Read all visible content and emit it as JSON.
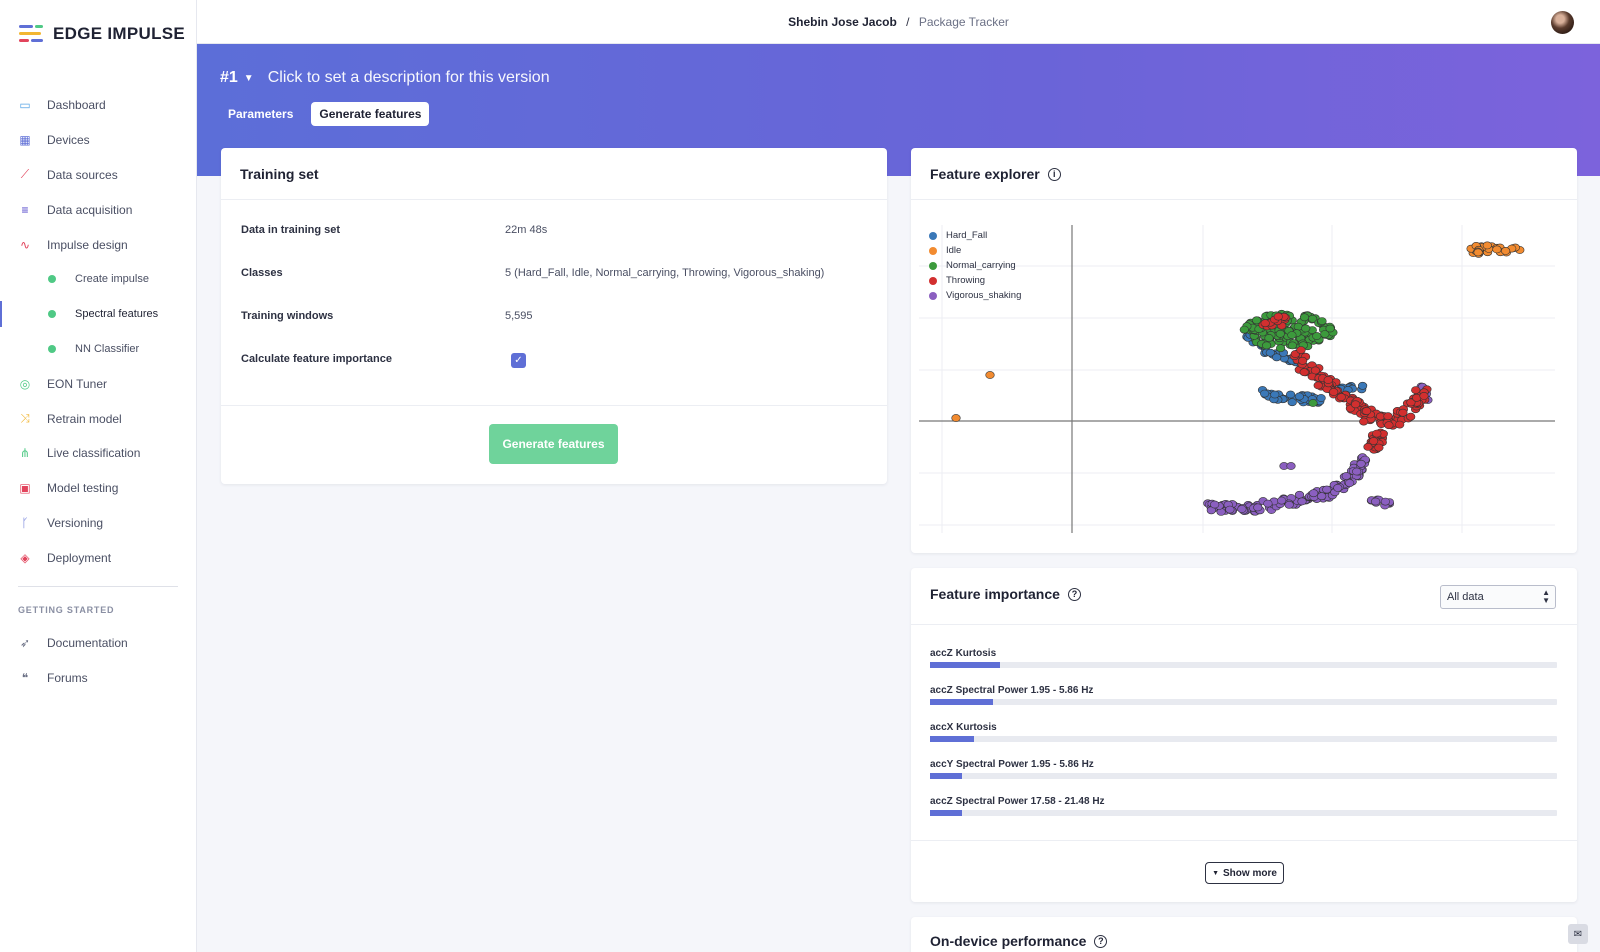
{
  "app": {
    "brand": "EDGE IMPULSE"
  },
  "sidebar": {
    "items": [
      {
        "label": "Dashboard",
        "icon": "monitor-icon",
        "color": "#5aa6e6"
      },
      {
        "label": "Devices",
        "icon": "chip-icon",
        "color": "#5f6fd6"
      },
      {
        "label": "Data sources",
        "icon": "wand-icon",
        "color": "#e2445c"
      },
      {
        "label": "Data acquisition",
        "icon": "database-icon",
        "color": "#4b3fc9"
      },
      {
        "label": "Impulse design",
        "icon": "pulse-icon",
        "color": "#e2445c"
      }
    ],
    "sub_items": [
      {
        "label": "Create impulse"
      },
      {
        "label": "Spectral features"
      },
      {
        "label": "NN Classifier"
      }
    ],
    "items_after": [
      {
        "label": "EON Tuner",
        "icon": "compass-icon",
        "color": "#4fc985"
      },
      {
        "label": "Retrain model",
        "icon": "shuffle-icon",
        "color": "#f2b632"
      },
      {
        "label": "Live classification",
        "icon": "network-icon",
        "color": "#4fc985"
      },
      {
        "label": "Model testing",
        "icon": "clipboard-check-icon",
        "color": "#e2445c"
      },
      {
        "label": "Versioning",
        "icon": "branch-icon",
        "color": "#5f6fd6"
      },
      {
        "label": "Deployment",
        "icon": "box-icon",
        "color": "#e2445c"
      }
    ],
    "section_label": "GETTING STARTED",
    "getting_started": [
      {
        "label": "Documentation",
        "icon": "rocket-icon"
      },
      {
        "label": "Forums",
        "icon": "chat-bubbles-icon"
      }
    ]
  },
  "topbar": {
    "user": "Shebin Jose Jacob",
    "separator": "/",
    "project": "Package Tracker"
  },
  "header": {
    "version": "#1",
    "description": "Click to set a description for this version",
    "tabs": [
      "Parameters",
      "Generate features"
    ],
    "active_tab": "Generate features"
  },
  "training_set": {
    "title": "Training set",
    "rows": [
      {
        "key": "Data in training set",
        "value": "22m 48s"
      },
      {
        "key": "Classes",
        "value": "5 (Hard_Fall, Idle, Normal_carrying, Throwing, Vigorous_shaking)"
      },
      {
        "key": "Training windows",
        "value": "5,595"
      },
      {
        "key": "Calculate feature importance",
        "value": ""
      }
    ],
    "calculate_checked": true,
    "button_label": "Generate features"
  },
  "feature_explorer": {
    "title": "Feature explorer",
    "legend": [
      {
        "name": "Hard_Fall",
        "color": "#3a78b8"
      },
      {
        "name": "Idle",
        "color": "#f28b30"
      },
      {
        "name": "Normal_carrying",
        "color": "#3c9a3c"
      },
      {
        "name": "Throwing",
        "color": "#d22f2f"
      },
      {
        "name": "Vigorous_shaking",
        "color": "#8b5fc0"
      }
    ]
  },
  "feature_importance": {
    "title": "Feature importance",
    "select_value": "All data",
    "items": [
      {
        "label": "accZ Kurtosis",
        "fraction": 0.11
      },
      {
        "label": "accZ Spectral Power 1.95 - 5.86 Hz",
        "fraction": 0.1
      },
      {
        "label": "accX Kurtosis",
        "fraction": 0.07
      },
      {
        "label": "accY Spectral Power 1.95 - 5.86 Hz",
        "fraction": 0.05
      },
      {
        "label": "accZ Spectral Power 17.58 - 21.48 Hz",
        "fraction": 0.05
      }
    ],
    "show_more": "Show more"
  },
  "on_device": {
    "title": "On-device performance"
  }
}
